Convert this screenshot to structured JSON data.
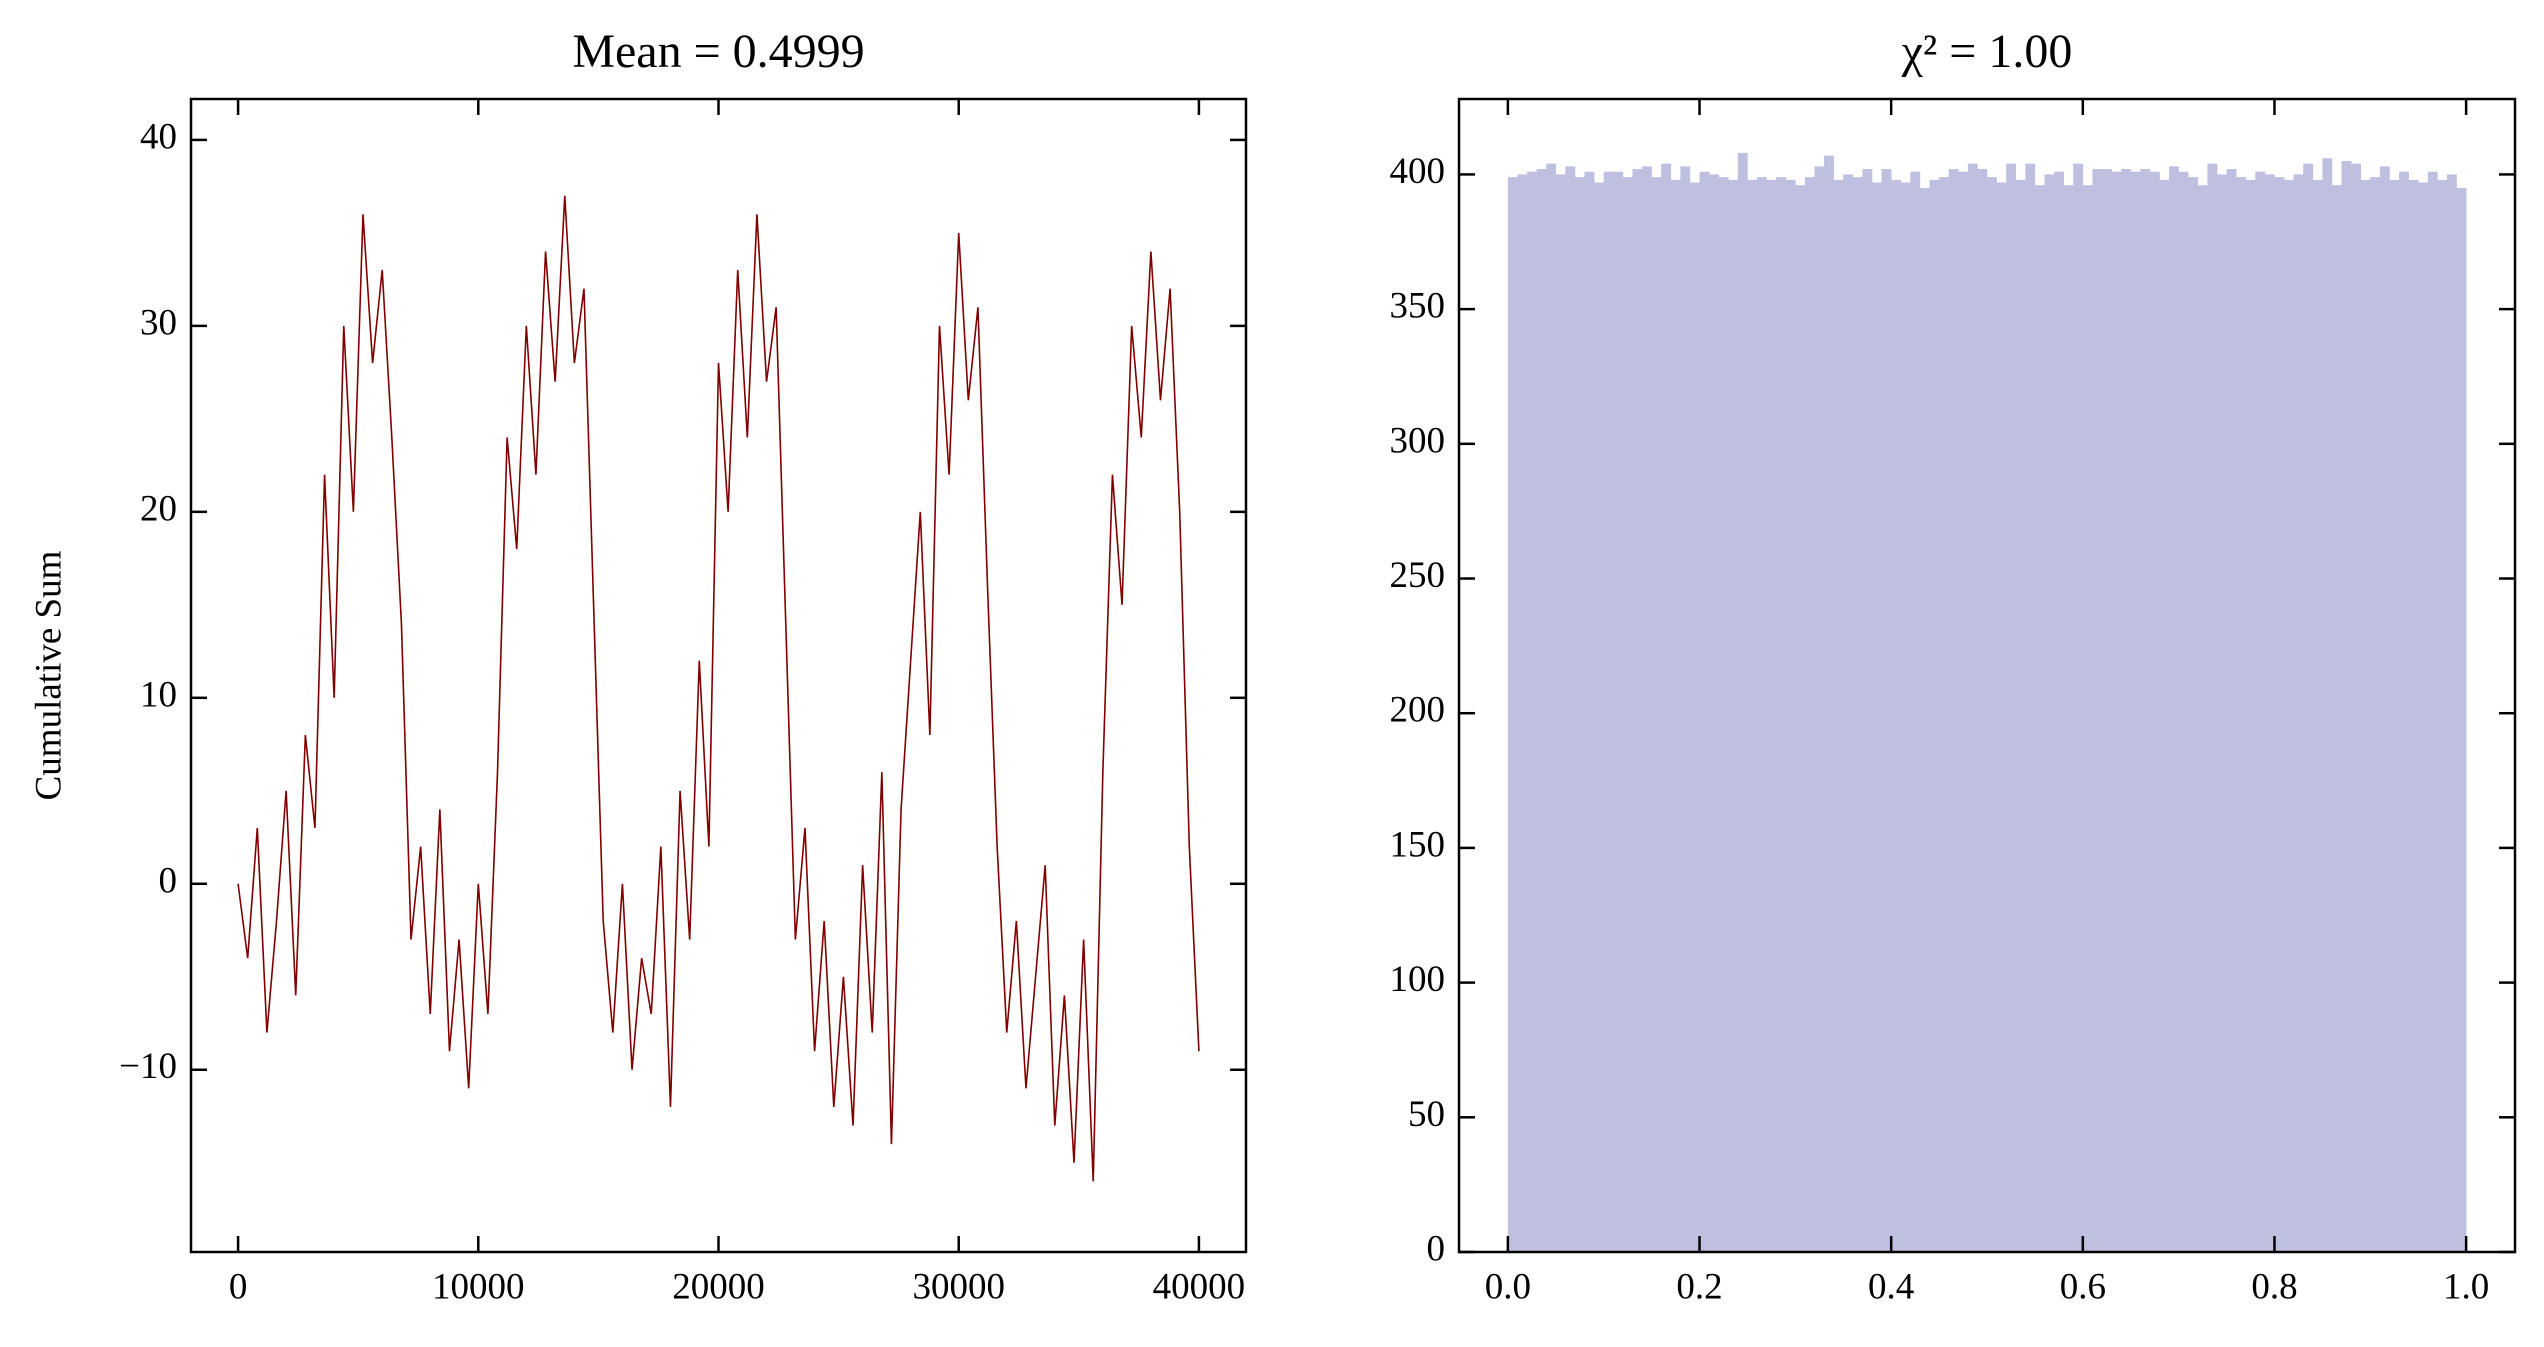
{
  "chart_data": [
    {
      "type": "line",
      "title": "Mean = 0.4999",
      "ylabel": "Cumulative Sum",
      "color": "#800000",
      "x": [
        0,
        400,
        800,
        1200,
        1600,
        2000,
        2400,
        2800,
        3200,
        3600,
        4000,
        4400,
        4800,
        5200,
        5600,
        6000,
        6400,
        6800,
        7200,
        7600,
        8000,
        8400,
        8800,
        9200,
        9600,
        10000,
        10400,
        10800,
        11200,
        11600,
        12000,
        12400,
        12800,
        13200,
        13600,
        14000,
        14400,
        14800,
        15200,
        15600,
        16000,
        16400,
        16800,
        17200,
        17600,
        18000,
        18400,
        18800,
        19200,
        19600,
        20000,
        20400,
        20800,
        21200,
        21600,
        22000,
        22400,
        22800,
        23200,
        23600,
        24000,
        24400,
        24800,
        25200,
        25600,
        26000,
        26400,
        26800,
        27200,
        27600,
        28000,
        28400,
        28800,
        29200,
        29600,
        30000,
        30400,
        30800,
        31200,
        31600,
        32000,
        32400,
        32800,
        33200,
        33600,
        34000,
        34400,
        34800,
        35200,
        35600,
        36000,
        36400,
        36800,
        37200,
        37600,
        38000,
        38400,
        38800,
        39200,
        39600,
        40000
      ],
      "values": [
        0,
        -4,
        3,
        -8,
        -2,
        5,
        -6,
        8,
        3,
        22,
        10,
        30,
        20,
        36,
        28,
        33,
        24,
        14,
        -3,
        2,
        -7,
        4,
        -9,
        -3,
        -11,
        0,
        -7,
        6,
        24,
        18,
        30,
        22,
        34,
        27,
        37,
        28,
        32,
        15,
        -2,
        -8,
        0,
        -10,
        -4,
        -7,
        2,
        -12,
        5,
        -3,
        12,
        2,
        28,
        20,
        33,
        24,
        36,
        27,
        31,
        14,
        -3,
        3,
        -9,
        -2,
        -12,
        -5,
        -13,
        1,
        -8,
        6,
        -14,
        4,
        12,
        20,
        8,
        30,
        22,
        35,
        26,
        31,
        16,
        2,
        -8,
        -2,
        -11,
        -5,
        1,
        -13,
        -6,
        -15,
        -3,
        -16,
        6,
        22,
        15,
        30,
        24,
        34,
        26,
        32,
        20,
        2,
        -9
      ],
      "xlim": [
        -1960,
        41960
      ],
      "xticks": [
        0,
        10000,
        20000,
        30000,
        40000
      ],
      "ylim": [
        -19.8,
        42.2
      ],
      "yticks": [
        {
          "value": -10,
          "label": "−10"
        },
        0,
        10,
        20,
        30,
        40
      ]
    },
    {
      "type": "histogram",
      "title": "χ² = 1.00",
      "color": "#bfc0e0",
      "bins": [
        0,
        0.01,
        0.02,
        0.03,
        0.04,
        0.05,
        0.06,
        0.07,
        0.08,
        0.09,
        0.1,
        0.11,
        0.12,
        0.13,
        0.14,
        0.15,
        0.16,
        0.17,
        0.18,
        0.19,
        0.2,
        0.21,
        0.22,
        0.23,
        0.24,
        0.25,
        0.26,
        0.27,
        0.28,
        0.29,
        0.3,
        0.31,
        0.32,
        0.33,
        0.34,
        0.35,
        0.36,
        0.37,
        0.38,
        0.39,
        0.4,
        0.41,
        0.42,
        0.43,
        0.44,
        0.45,
        0.46,
        0.47,
        0.48,
        0.49,
        0.5,
        0.51,
        0.52,
        0.53,
        0.54,
        0.55,
        0.56,
        0.57,
        0.58,
        0.59,
        0.6,
        0.61,
        0.62,
        0.63,
        0.64,
        0.65,
        0.66,
        0.67,
        0.68,
        0.69,
        0.7,
        0.71,
        0.72,
        0.73,
        0.74,
        0.75,
        0.76,
        0.77,
        0.78,
        0.79,
        0.8,
        0.81,
        0.82,
        0.83,
        0.84,
        0.85,
        0.86,
        0.87,
        0.88,
        0.89,
        0.9,
        0.91,
        0.92,
        0.93,
        0.94,
        0.95,
        0.96,
        0.97,
        0.98,
        0.99,
        1
      ],
      "values": [
        399,
        400,
        401,
        402,
        404,
        400,
        403,
        399,
        401,
        397,
        401,
        401,
        399,
        402,
        403,
        399,
        404,
        398,
        403,
        397,
        401,
        400,
        399,
        398,
        408,
        398,
        399,
        398,
        399,
        398,
        396,
        399,
        403,
        407,
        398,
        400,
        399,
        402,
        397,
        402,
        398,
        397,
        401,
        395,
        398,
        399,
        402,
        401,
        404,
        402,
        399,
        397,
        404,
        398,
        404,
        396,
        400,
        401,
        396,
        404,
        396,
        402,
        402,
        401,
        402,
        401,
        402,
        401,
        398,
        403,
        401,
        399,
        396,
        404,
        400,
        402,
        399,
        398,
        401,
        400,
        399,
        398,
        400,
        404,
        398,
        406,
        396,
        405,
        404,
        398,
        399,
        403,
        398,
        401,
        398,
        397,
        401,
        398,
        400,
        395
      ],
      "xlim": [
        -0.051,
        1.051
      ],
      "xticks": [
        {
          "value": 0,
          "label": "0.0"
        },
        0.2,
        0.4,
        0.6,
        0.8,
        {
          "value": 1,
          "label": "1.0"
        }
      ],
      "ylim": [
        0,
        428
      ],
      "yticks": [
        0,
        50,
        100,
        150,
        200,
        250,
        300,
        350,
        400
      ]
    }
  ]
}
